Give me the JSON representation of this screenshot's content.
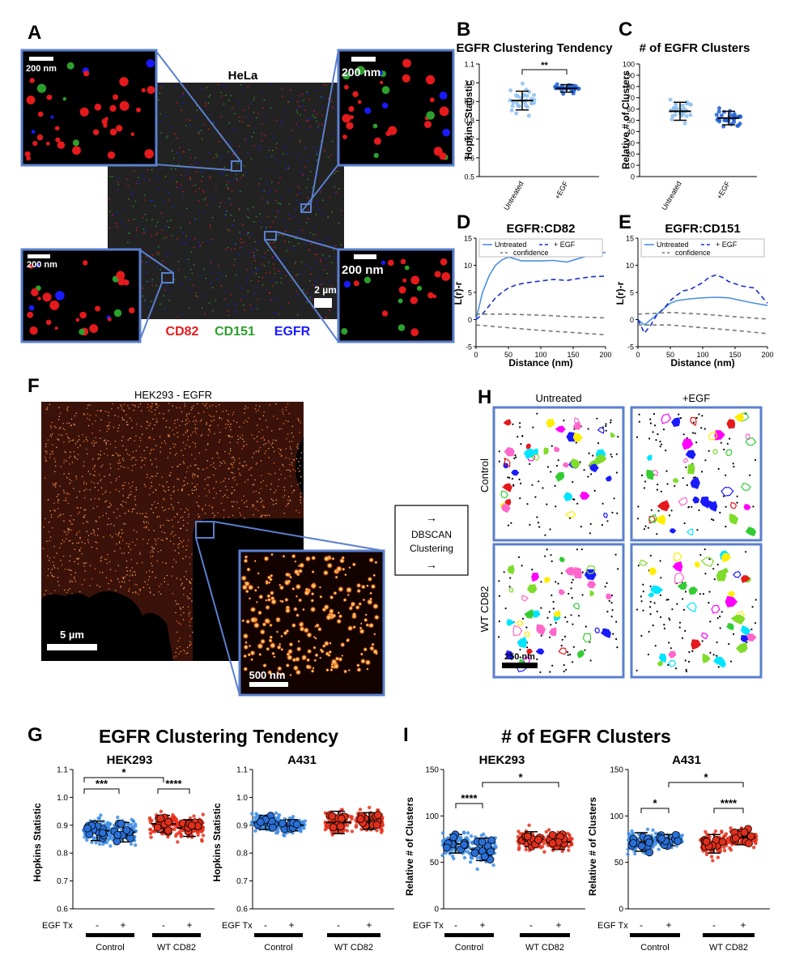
{
  "labels": {
    "A": "A",
    "B": "B",
    "C": "C",
    "D": "D",
    "E": "E",
    "F": "F",
    "G": "G",
    "H": "H",
    "I": "I"
  },
  "colors": {
    "frame": "#5b7fce",
    "cd82": "#e41a1c",
    "cd151": "#2ca02c",
    "egfr": "#1a1aff",
    "light_blue": "#8cc0f0",
    "mid_blue": "#1f5fd0",
    "red": "#e8301c"
  },
  "panelA": {
    "title": "HeLa",
    "legend_cd82": "CD82",
    "legend_cd151": "CD151",
    "legend_egfr": "EGFR",
    "scale_main": "2 µm",
    "scale_inset": "200 nm"
  },
  "panelB": {
    "chart_data": {
      "type": "scatter",
      "title": "EGFR Clustering Tendency",
      "ylabel": "Hopkins Statistic",
      "ylim": [
        0.5,
        1.1
      ],
      "yticks": [
        "0.5",
        "0.6",
        "0.7",
        "0.8",
        "0.9",
        "1.0",
        "1.1"
      ],
      "categories": [
        "Untreated",
        "+EGF"
      ],
      "means": [
        0.905,
        0.97
      ],
      "sd": [
        0.05,
        0.02
      ],
      "significance": "**"
    }
  },
  "panelC": {
    "chart_data": {
      "type": "scatter",
      "title": "# of EGFR Clusters",
      "ylabel": "Relative # of Clusters",
      "ylim": [
        0,
        100
      ],
      "yticks": [
        "0",
        "10",
        "20",
        "30",
        "40",
        "50",
        "60",
        "70",
        "80",
        "90",
        "100"
      ],
      "categories": [
        "Untreated",
        "+EGF"
      ],
      "means": [
        58,
        52
      ],
      "sd": [
        8,
        6
      ]
    }
  },
  "panelD": {
    "chart_data": {
      "type": "line",
      "title": "EGFR:CD82",
      "xlabel": "Distance (nm)",
      "ylabel": "L(r)-r",
      "xlim": [
        0,
        200
      ],
      "ylim": [
        -5,
        15
      ],
      "xticks": [
        "0",
        "50",
        "100",
        "150",
        "200"
      ],
      "yticks": [
        "-5",
        "0",
        "5",
        "10",
        "15"
      ],
      "legend": {
        "untreated": "Untreated",
        "egf": "+ EGF",
        "confidence": "confidence"
      },
      "series": [
        {
          "name": "Untreated",
          "x": [
            0,
            10,
            20,
            30,
            40,
            50,
            60,
            70,
            80,
            100,
            120,
            140,
            160,
            180,
            200
          ],
          "y": [
            0,
            5,
            8,
            10,
            11,
            11.5,
            11.2,
            10.8,
            10.8,
            10.8,
            10.9,
            10.6,
            11.3,
            12,
            12.4
          ]
        },
        {
          "name": "+ EGF",
          "x": [
            0,
            10,
            20,
            30,
            40,
            50,
            60,
            70,
            80,
            100,
            120,
            140,
            160,
            180,
            200
          ],
          "y": [
            0,
            1,
            2.5,
            4,
            5,
            5.8,
            6.3,
            6.6,
            6.8,
            7.1,
            7.4,
            7.2,
            7.6,
            7.9,
            8
          ]
        },
        {
          "name": "confidence",
          "x": [
            0,
            50,
            100,
            150,
            200
          ],
          "y": [
            1,
            1,
            0.8,
            0.5,
            0.3
          ]
        },
        {
          "name": "confidence",
          "x": [
            0,
            50,
            100,
            150,
            200
          ],
          "y": [
            -1,
            -1.5,
            -2,
            -2.4,
            -2.8
          ]
        }
      ]
    }
  },
  "panelE": {
    "chart_data": {
      "type": "line",
      "title": "EGFR:CD151",
      "xlabel": "Distance (nm)",
      "ylabel": "L(r)-r",
      "xlim": [
        0,
        200
      ],
      "ylim": [
        -5,
        15
      ],
      "xticks": [
        "0",
        "50",
        "100",
        "150",
        "200"
      ],
      "yticks": [
        "-5",
        "0",
        "5",
        "10",
        "15"
      ],
      "legend": {
        "untreated": "Untreated",
        "egf": "+ EGF",
        "confidence": "confidence"
      },
      "series": [
        {
          "name": "Untreated",
          "x": [
            0,
            10,
            20,
            30,
            40,
            50,
            60,
            80,
            100,
            120,
            140,
            160,
            180,
            200
          ],
          "y": [
            0,
            -1,
            0,
            1,
            2,
            3,
            3.5,
            3.8,
            4,
            4.1,
            4,
            3.5,
            3,
            2.6
          ]
        },
        {
          "name": "+ EGF",
          "x": [
            0,
            10,
            20,
            30,
            40,
            50,
            60,
            70,
            80,
            100,
            110,
            120,
            130,
            140,
            160,
            180,
            200
          ],
          "y": [
            0,
            -2.5,
            -1,
            1,
            2,
            3.5,
            4.5,
            5.3,
            5.5,
            6.8,
            7.8,
            8.2,
            7.8,
            7,
            6.2,
            5.8,
            3
          ]
        },
        {
          "name": "confidence",
          "x": [
            0,
            50,
            100,
            150,
            200
          ],
          "y": [
            1,
            1.3,
            1,
            0.5,
            0.1
          ]
        },
        {
          "name": "confidence",
          "x": [
            0,
            50,
            100,
            150,
            200
          ],
          "y": [
            -1,
            -1,
            -1.5,
            -2,
            -2.6
          ]
        }
      ]
    }
  },
  "panelF": {
    "title": "HEK293 - EGFR",
    "scale_main": "5 µm",
    "scale_inset": "500 nm"
  },
  "arrow": {
    "up": "→",
    "line1": "DBSCAN",
    "line2": "Clustering",
    "down": "→"
  },
  "panelH": {
    "col1": "Untreated",
    "col2": "+EGF",
    "row1": "Control",
    "row2": "WT CD82",
    "scale": "250 nm"
  },
  "panelG": {
    "title": "EGFR Clustering Tendency",
    "treatment_label": "EGF Tx",
    "minus": "-",
    "plus": "+",
    "group1": "Control",
    "group2": "WT CD82",
    "chart_data": [
      {
        "type": "scatter",
        "title": "HEK293",
        "ylabel": "Hopkins Statistic",
        "ylim": [
          0.6,
          1.1
        ],
        "yticks": [
          "0.6",
          "0.7",
          "0.8",
          "0.9",
          "1.0",
          "1.1"
        ],
        "categories": [
          "Control -",
          "Control +",
          "WT CD82 -",
          "WT CD82 +"
        ],
        "means": [
          0.88,
          0.875,
          0.905,
          0.89
        ],
        "sd": [
          0.035,
          0.035,
          0.03,
          0.03
        ],
        "significance": [
          "***",
          "****",
          "*"
        ]
      },
      {
        "type": "scatter",
        "title": "A431",
        "ylabel": "Hopkins Statistic",
        "ylim": [
          0.6,
          1.1
        ],
        "yticks": [
          "0.6",
          "0.7",
          "0.8",
          "0.9",
          "1.0",
          "1.1"
        ],
        "categories": [
          "Control -",
          "Control +",
          "WT CD82 -",
          "WT CD82 +"
        ],
        "means": [
          0.91,
          0.9,
          0.91,
          0.915
        ],
        "sd": [
          0.025,
          0.02,
          0.04,
          0.03
        ]
      }
    ]
  },
  "panelI": {
    "title": "# of EGFR Clusters",
    "treatment_label": "EGF Tx",
    "minus": "-",
    "plus": "+",
    "group1": "Control",
    "group2": "WT CD82",
    "chart_data": [
      {
        "type": "scatter",
        "title": "HEK293",
        "ylabel": "Relative # of Clusters",
        "ylim": [
          0,
          150
        ],
        "yticks": [
          "0",
          "50",
          "100",
          "150"
        ],
        "categories": [
          "Control -",
          "Control +",
          "WT CD82 -",
          "WT CD82 +"
        ],
        "means": [
          70,
          64,
          75,
          72
        ],
        "sd": [
          10,
          12,
          8,
          8
        ],
        "significance": [
          "****",
          "*"
        ]
      },
      {
        "type": "scatter",
        "title": "A431",
        "ylabel": "Relative # of Clusters",
        "ylim": [
          0,
          150
        ],
        "yticks": [
          "0",
          "50",
          "100",
          "150"
        ],
        "categories": [
          "Control -",
          "Control +",
          "WT CD82 -",
          "WT CD82 +"
        ],
        "means": [
          72,
          74,
          70,
          77
        ],
        "sd": [
          10,
          6,
          10,
          8
        ],
        "significance": [
          "*",
          "****",
          "*"
        ]
      }
    ]
  }
}
